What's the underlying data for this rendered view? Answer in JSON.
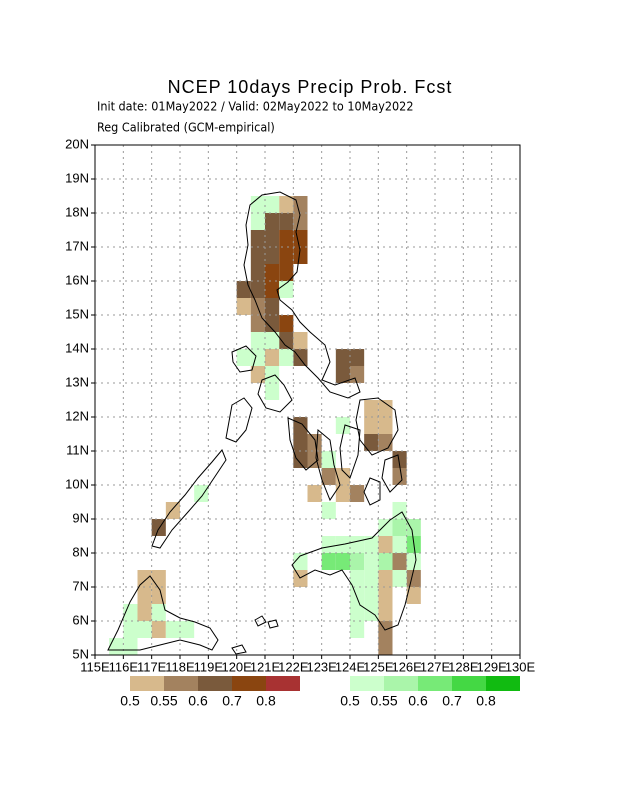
{
  "header": {
    "title": "NCEP 10days Precip Prob. Fcst",
    "dates": "Init date: 01May2022 / Valid: 02May2022 to 10May2022",
    "method": "Reg Calibrated (GCM-empirical)"
  },
  "map": {
    "xlim": [
      115,
      130
    ],
    "ylim": [
      5,
      20
    ],
    "cell_size": 0.5,
    "xticks": [
      {
        "value": 115,
        "label": "115E"
      },
      {
        "value": 116,
        "label": "116E"
      },
      {
        "value": 117,
        "label": "117E"
      },
      {
        "value": 118,
        "label": "118E"
      },
      {
        "value": 119,
        "label": "119E"
      },
      {
        "value": 120,
        "label": "120E"
      },
      {
        "value": 121,
        "label": "121E"
      },
      {
        "value": 122,
        "label": "122E"
      },
      {
        "value": 123,
        "label": "123E"
      },
      {
        "value": 124,
        "label": "124E"
      },
      {
        "value": 125,
        "label": "125E"
      },
      {
        "value": 126,
        "label": "126E"
      },
      {
        "value": 127,
        "label": "127E"
      },
      {
        "value": 128,
        "label": "128E"
      },
      {
        "value": 129,
        "label": "129E"
      },
      {
        "value": 130,
        "label": "130E"
      }
    ],
    "yticks": [
      {
        "value": 5,
        "label": "5N"
      },
      {
        "value": 6,
        "label": "6N"
      },
      {
        "value": 7,
        "label": "7N"
      },
      {
        "value": 8,
        "label": "8N"
      },
      {
        "value": 9,
        "label": "9N"
      },
      {
        "value": 10,
        "label": "10N"
      },
      {
        "value": 11,
        "label": "11N"
      },
      {
        "value": 12,
        "label": "12N"
      },
      {
        "value": 13,
        "label": "13N"
      },
      {
        "value": 14,
        "label": "14N"
      },
      {
        "value": 15,
        "label": "15N"
      },
      {
        "value": 16,
        "label": "16N"
      },
      {
        "value": 17,
        "label": "17N"
      },
      {
        "value": 18,
        "label": "18N"
      },
      {
        "value": 19,
        "label": "19N"
      },
      {
        "value": 20,
        "label": "20N"
      }
    ],
    "grid": true,
    "dry_legend": {
      "levels": [
        {
          "value": 0.5,
          "label": "0.5"
        },
        {
          "value": 0.55,
          "label": "0.55"
        },
        {
          "value": 0.6,
          "label": "0.6"
        },
        {
          "value": 0.7,
          "label": "0.7"
        },
        {
          "value": 0.8,
          "label": "0.8"
        }
      ],
      "colors": [
        "#d7b98c",
        "#a3825f",
        "#7a5a3c",
        "#8a4510",
        "#a83232"
      ]
    },
    "wet_legend": {
      "levels": [
        {
          "value": 0.5,
          "label": "0.5"
        },
        {
          "value": 0.55,
          "label": "0.55"
        },
        {
          "value": 0.6,
          "label": "0.6"
        },
        {
          "value": 0.7,
          "label": "0.7"
        },
        {
          "value": 0.8,
          "label": "0.8"
        }
      ],
      "colors": [
        "#ccffcc",
        "#aaf5aa",
        "#77ea77",
        "#44d844",
        "#11bb11"
      ]
    },
    "dry_cells": [
      {
        "lon": 121.5,
        "lat": 18,
        "prob": 0.5
      },
      {
        "lon": 122,
        "lat": 18,
        "prob": 0.55
      },
      {
        "lon": 121,
        "lat": 17.5,
        "prob": 0.6
      },
      {
        "lon": 121.5,
        "lat": 17.5,
        "prob": 0.6
      },
      {
        "lon": 122,
        "lat": 17.5,
        "prob": 0.55
      },
      {
        "lon": 120.5,
        "lat": 17,
        "prob": 0.6
      },
      {
        "lon": 121,
        "lat": 17,
        "prob": 0.6
      },
      {
        "lon": 121.5,
        "lat": 17,
        "prob": 0.7
      },
      {
        "lon": 122,
        "lat": 17,
        "prob": 0.7
      },
      {
        "lon": 120.5,
        "lat": 16.5,
        "prob": 0.6
      },
      {
        "lon": 121,
        "lat": 16.5,
        "prob": 0.6
      },
      {
        "lon": 121.5,
        "lat": 16.5,
        "prob": 0.7
      },
      {
        "lon": 122,
        "lat": 16.5,
        "prob": 0.7
      },
      {
        "lon": 120.5,
        "lat": 16,
        "prob": 0.6
      },
      {
        "lon": 121,
        "lat": 16,
        "prob": 0.7
      },
      {
        "lon": 121.5,
        "lat": 16,
        "prob": 0.7
      },
      {
        "lon": 120,
        "lat": 15.5,
        "prob": 0.6
      },
      {
        "lon": 120.5,
        "lat": 15.5,
        "prob": 0.6
      },
      {
        "lon": 121,
        "lat": 15.5,
        "prob": 0.7
      },
      {
        "lon": 120,
        "lat": 15,
        "prob": 0.5
      },
      {
        "lon": 120.5,
        "lat": 15,
        "prob": 0.55
      },
      {
        "lon": 121,
        "lat": 15,
        "prob": 0.6
      },
      {
        "lon": 120.5,
        "lat": 14.5,
        "prob": 0.55
      },
      {
        "lon": 121,
        "lat": 14.5,
        "prob": 0.6
      },
      {
        "lon": 121.5,
        "lat": 14.5,
        "prob": 0.7
      },
      {
        "lon": 121.5,
        "lat": 14,
        "prob": 0.6
      },
      {
        "lon": 122,
        "lat": 14,
        "prob": 0.5
      },
      {
        "lon": 121,
        "lat": 13.5,
        "prob": 0.5
      },
      {
        "lon": 122,
        "lat": 13.5,
        "prob": 0.6
      },
      {
        "lon": 123.5,
        "lat": 13.5,
        "prob": 0.6
      },
      {
        "lon": 124,
        "lat": 13.5,
        "prob": 0.6
      },
      {
        "lon": 120.5,
        "lat": 13,
        "prob": 0.5
      },
      {
        "lon": 123.5,
        "lat": 13,
        "prob": 0.6
      },
      {
        "lon": 124,
        "lat": 13,
        "prob": 0.55
      },
      {
        "lon": 124.5,
        "lat": 12,
        "prob": 0.5
      },
      {
        "lon": 125,
        "lat": 12,
        "prob": 0.5
      },
      {
        "lon": 122,
        "lat": 11.5,
        "prob": 0.6
      },
      {
        "lon": 124.5,
        "lat": 11.5,
        "prob": 0.5
      },
      {
        "lon": 125,
        "lat": 11.5,
        "prob": 0.5
      },
      {
        "lon": 122,
        "lat": 11,
        "prob": 0.6
      },
      {
        "lon": 122.5,
        "lat": 11,
        "prob": 0.55
      },
      {
        "lon": 124.5,
        "lat": 11,
        "prob": 0.6
      },
      {
        "lon": 125,
        "lat": 11,
        "prob": 0.55
      },
      {
        "lon": 122,
        "lat": 10.5,
        "prob": 0.6
      },
      {
        "lon": 122.5,
        "lat": 10.5,
        "prob": 0.55
      },
      {
        "lon": 125.5,
        "lat": 10.5,
        "prob": 0.6
      },
      {
        "lon": 123,
        "lat": 10,
        "prob": 0.55
      },
      {
        "lon": 123.5,
        "lat": 10,
        "prob": 0.5
      },
      {
        "lon": 125.5,
        "lat": 10,
        "prob": 0.55
      },
      {
        "lon": 122.5,
        "lat": 9.5,
        "prob": 0.5
      },
      {
        "lon": 123.5,
        "lat": 9.5,
        "prob": 0.5
      },
      {
        "lon": 124,
        "lat": 9.5,
        "prob": 0.55
      },
      {
        "lon": 125,
        "lat": 8,
        "prob": 0.5
      },
      {
        "lon": 125.5,
        "lat": 7.5,
        "prob": 0.55
      },
      {
        "lon": 122,
        "lat": 7,
        "prob": 0.5
      },
      {
        "lon": 125,
        "lat": 7,
        "prob": 0.5
      },
      {
        "lon": 126,
        "lat": 7,
        "prob": 0.55
      },
      {
        "lon": 125,
        "lat": 6.5,
        "prob": 0.5
      },
      {
        "lon": 126,
        "lat": 6.5,
        "prob": 0.5
      },
      {
        "lon": 125,
        "lat": 6,
        "prob": 0.5
      },
      {
        "lon": 125,
        "lat": 5.5,
        "prob": 0.55
      },
      {
        "lon": 125,
        "lat": 5,
        "prob": 0.55
      },
      {
        "lon": 117.5,
        "lat": 9,
        "prob": 0.5
      },
      {
        "lon": 117,
        "lat": 8.5,
        "prob": 0.6
      },
      {
        "lon": 116.5,
        "lat": 7,
        "prob": 0.5
      },
      {
        "lon": 117,
        "lat": 7,
        "prob": 0.5
      },
      {
        "lon": 116.5,
        "lat": 6.5,
        "prob": 0.5
      },
      {
        "lon": 117,
        "lat": 6.5,
        "prob": 0.5
      },
      {
        "lon": 116.5,
        "lat": 6,
        "prob": 0.5
      },
      {
        "lon": 117,
        "lat": 5.5,
        "prob": 0.5
      }
    ],
    "wet_cells": [
      {
        "lon": 120.5,
        "lat": 18,
        "prob": 0.5
      },
      {
        "lon": 121,
        "lat": 18,
        "prob": 0.5
      },
      {
        "lon": 120.5,
        "lat": 17.5,
        "prob": 0.5
      },
      {
        "lon": 121.5,
        "lat": 15.5,
        "prob": 0.5
      },
      {
        "lon": 120.5,
        "lat": 14,
        "prob": 0.5
      },
      {
        "lon": 121,
        "lat": 14,
        "prob": 0.5
      },
      {
        "lon": 120,
        "lat": 13.5,
        "prob": 0.5
      },
      {
        "lon": 120.5,
        "lat": 13.5,
        "prob": 0.5
      },
      {
        "lon": 121.5,
        "lat": 13.5,
        "prob": 0.5
      },
      {
        "lon": 121,
        "lat": 13,
        "prob": 0.5
      },
      {
        "lon": 121,
        "lat": 12.5,
        "prob": 0.5
      },
      {
        "lon": 123.5,
        "lat": 11.5,
        "prob": 0.5
      },
      {
        "lon": 123,
        "lat": 10.5,
        "prob": 0.5
      },
      {
        "lon": 118.5,
        "lat": 9.5,
        "prob": 0.5
      },
      {
        "lon": 123,
        "lat": 9,
        "prob": 0.5
      },
      {
        "lon": 125.5,
        "lat": 9,
        "prob": 0.5
      },
      {
        "lon": 125,
        "lat": 8.5,
        "prob": 0.5
      },
      {
        "lon": 125.5,
        "lat": 8.5,
        "prob": 0.55
      },
      {
        "lon": 126,
        "lat": 8.5,
        "prob": 0.55
      },
      {
        "lon": 123,
        "lat": 8,
        "prob": 0.5
      },
      {
        "lon": 123.5,
        "lat": 8,
        "prob": 0.5
      },
      {
        "lon": 124,
        "lat": 8,
        "prob": 0.5
      },
      {
        "lon": 124.5,
        "lat": 8,
        "prob": 0.5
      },
      {
        "lon": 125.5,
        "lat": 8,
        "prob": 0.5
      },
      {
        "lon": 126,
        "lat": 8,
        "prob": 0.6
      },
      {
        "lon": 122,
        "lat": 7.5,
        "prob": 0.5
      },
      {
        "lon": 123,
        "lat": 7.5,
        "prob": 0.6
      },
      {
        "lon": 123.5,
        "lat": 7.5,
        "prob": 0.6
      },
      {
        "lon": 124,
        "lat": 7.5,
        "prob": 0.55
      },
      {
        "lon": 124.5,
        "lat": 7.5,
        "prob": 0.5
      },
      {
        "lon": 125,
        "lat": 7.5,
        "prob": 0.55
      },
      {
        "lon": 126,
        "lat": 7.5,
        "prob": 0.5
      },
      {
        "lon": 124,
        "lat": 7,
        "prob": 0.5
      },
      {
        "lon": 124.5,
        "lat": 7,
        "prob": 0.5
      },
      {
        "lon": 125.5,
        "lat": 7,
        "prob": 0.5
      },
      {
        "lon": 124,
        "lat": 6.5,
        "prob": 0.5
      },
      {
        "lon": 124.5,
        "lat": 6.5,
        "prob": 0.5
      },
      {
        "lon": 124,
        "lat": 6,
        "prob": 0.5
      },
      {
        "lon": 124.5,
        "lat": 6,
        "prob": 0.5
      },
      {
        "lon": 124,
        "lat": 5.5,
        "prob": 0.5
      },
      {
        "lon": 116,
        "lat": 6,
        "prob": 0.5
      },
      {
        "lon": 117,
        "lat": 6,
        "prob": 0.5
      },
      {
        "lon": 116,
        "lat": 5.5,
        "prob": 0.5
      },
      {
        "lon": 116.5,
        "lat": 5.5,
        "prob": 0.5
      },
      {
        "lon": 117.5,
        "lat": 5.5,
        "prob": 0.5
      },
      {
        "lon": 118,
        "lat": 5.5,
        "prob": 0.5
      },
      {
        "lon": 115.5,
        "lat": 5,
        "prob": 0.5
      },
      {
        "lon": 116,
        "lat": 5,
        "prob": 0.5
      }
    ]
  }
}
